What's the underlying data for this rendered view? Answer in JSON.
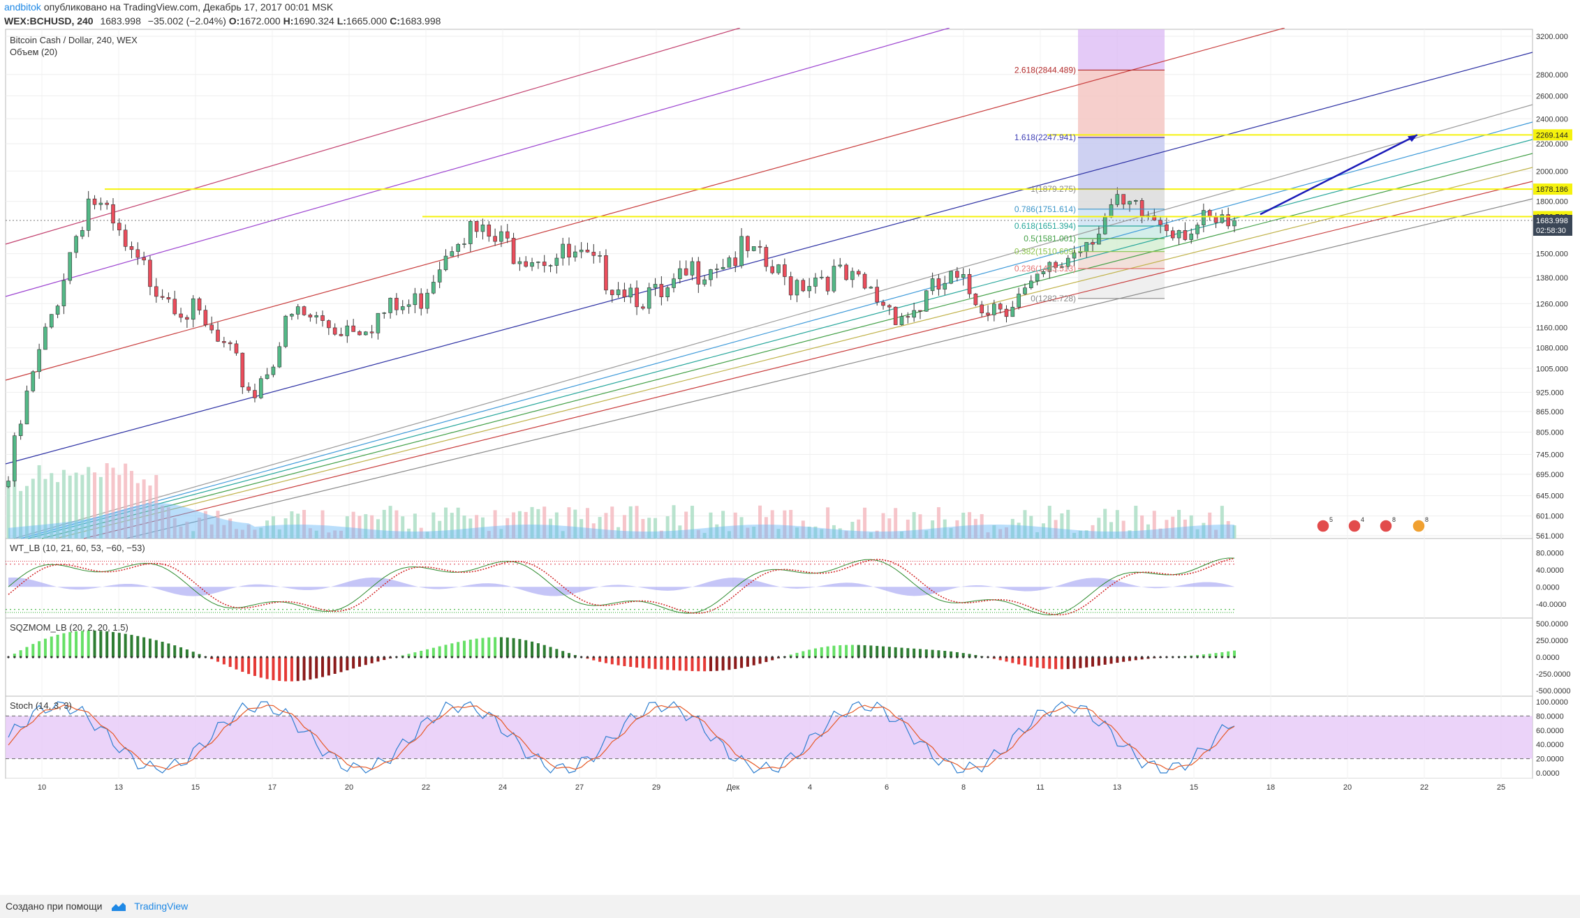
{
  "header": {
    "author": "andbitok",
    "published": "опубликовано на TradingView.com, Декабрь 17, 2017 00:01 MSK"
  },
  "symbol_bar": {
    "symbol": "WEX:BCHUSD, 240",
    "last": "1683.998",
    "change": "−35.002 (−2.04%)",
    "o_label": "O:",
    "o": "1672.000",
    "h_label": "H:",
    "h": "1690.324",
    "l_label": "L:",
    "l": "1665.000",
    "c_label": "C:",
    "c": "1683.998"
  },
  "colors": {
    "up": "#53b987",
    "down": "#eb4d5c",
    "yellow_line": "#f5f20d",
    "accent": "#1e88e5",
    "stoch_band": "#e6c8f7",
    "fib_top": "#d9b3f4"
  },
  "main_pane": {
    "title": "Bitcoin Cash / Dollar, 240, WEX",
    "volume_label": "Объем (20)",
    "price_ticks": [
      "3200.000",
      "2800.000",
      "2600.000",
      "2400.000",
      "2200.000",
      "2000.000",
      "1800.000",
      "1500.000",
      "1380.000",
      "1260.000",
      "1160.000",
      "1080.000",
      "1005.000",
      "925.000",
      "865.000",
      "805.000",
      "745.000",
      "695.000",
      "645.000",
      "601.000",
      "561.000"
    ],
    "price_badges": [
      {
        "value": "2269.144",
        "type": "yellow"
      },
      {
        "value": "1878.186",
        "type": "yellow"
      },
      {
        "value": "1706.713",
        "type": "yellow"
      },
      {
        "value": "1683.998",
        "type": "dark"
      },
      {
        "value": "02:58:30",
        "type": "dark"
      }
    ],
    "fib_levels": [
      {
        "label": "2.618(2844.489)",
        "color": "#b22a2a"
      },
      {
        "label": "1.618(2247.941)",
        "color": "#3f3fb5"
      },
      {
        "label": "1(1879.275)",
        "color": "#8a8a8a"
      },
      {
        "label": "0.786(1751.614)",
        "color": "#3b96c9"
      },
      {
        "label": "0.618(1651.394)",
        "color": "#26a69a"
      },
      {
        "label": "0.5(1581.001)",
        "color": "#43a047"
      },
      {
        "label": "0.382(1510.609)",
        "color": "#8bc34a"
      },
      {
        "label": "0.236(1423.513)",
        "color": "#e57373"
      },
      {
        "label": "0(1282.728)",
        "color": "#888888"
      }
    ],
    "event_badges": [
      "5",
      "4",
      "8",
      "8"
    ]
  },
  "x_axis": {
    "labels": [
      "10",
      "13",
      "15",
      "17",
      "20",
      "22",
      "24",
      "27",
      "29",
      "Дек",
      "4",
      "6",
      "8",
      "11",
      "13",
      "15",
      "18",
      "20",
      "22",
      "25"
    ]
  },
  "wt_pane": {
    "title": "WT_LB (10, 21, 60, 53, −60, −53)",
    "ticks": [
      "80.0000",
      "40.0000",
      "0.0000",
      "-40.0000"
    ]
  },
  "sqz_pane": {
    "title": "SQZMOM_LB (20, 2, 20, 1.5)",
    "ticks": [
      "500.0000",
      "250.0000",
      "0.0000",
      "-250.0000",
      "-500.0000"
    ]
  },
  "stoch_pane": {
    "title": "Stoch (14, 3, 3)",
    "ticks": [
      "100.0000",
      "80.0000",
      "60.0000",
      "40.0000",
      "20.0000",
      "0.0000"
    ]
  },
  "footer": {
    "created_with": "Создано при помощи",
    "brand": "TradingView"
  },
  "chart_data": {
    "type": "candlestick",
    "title": "Bitcoin Cash / Dollar, 240, WEX",
    "x_dates": [
      "10",
      "13",
      "15",
      "17",
      "20",
      "22",
      "24",
      "27",
      "29",
      "Дек",
      "4",
      "6",
      "8",
      "11",
      "13",
      "15"
    ],
    "close_path": [
      700,
      1200,
      1900,
      1500,
      1350,
      1150,
      950,
      1250,
      1200,
      1240,
      1300,
      1700,
      1600,
      1550,
      1500,
      1400,
      1300,
      1500,
      1550,
      1400,
      1450,
      1350,
      1250,
      1400,
      1300,
      1340,
      1550,
      1800,
      1750,
      1700,
      1684
    ],
    "last_price": 1683.998,
    "yellow_levels": [
      2269.144,
      1878.186,
      1706.713
    ],
    "fib_retracement": {
      "0": 1282.728,
      "0.236": 1423.513,
      "0.382": 1510.609,
      "0.5": 1581.001,
      "0.618": 1651.394,
      "0.786": 1751.614,
      "1": 1879.275,
      "1.618": 2247.941,
      "2.618": 2844.489
    },
    "yaxis_scale": "log",
    "ylim": [
      561,
      3200
    ]
  }
}
